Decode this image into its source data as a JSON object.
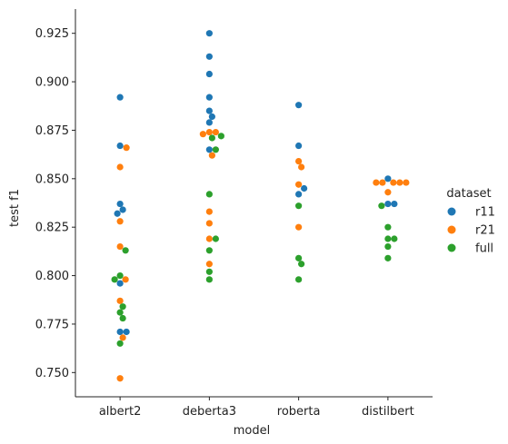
{
  "chart_data": {
    "type": "scatter",
    "xlabel": "model",
    "ylabel": "test f1",
    "categories": [
      "albert2",
      "deberta3",
      "roberta",
      "distilbert"
    ],
    "ylim": [
      0.7375,
      0.9375
    ],
    "yticks": [
      0.75,
      0.775,
      0.8,
      0.825,
      0.85,
      0.875,
      0.9,
      0.925
    ],
    "ytick_labels": [
      "0.750",
      "0.775",
      "0.800",
      "0.825",
      "0.850",
      "0.875",
      "0.900",
      "0.925"
    ],
    "grid": false,
    "legend": {
      "title": "dataset",
      "placement": "right"
    },
    "series": [
      {
        "name": "r11",
        "color": "#1f77b4",
        "points": [
          {
            "category": "albert2",
            "y": 0.892
          },
          {
            "category": "albert2",
            "y": 0.867
          },
          {
            "category": "albert2",
            "y": 0.837
          },
          {
            "category": "albert2",
            "y": 0.834
          },
          {
            "category": "albert2",
            "y": 0.832
          },
          {
            "category": "albert2",
            "y": 0.796
          },
          {
            "category": "albert2",
            "y": 0.771
          },
          {
            "category": "albert2",
            "y": 0.771
          },
          {
            "category": "deberta3",
            "y": 0.925
          },
          {
            "category": "deberta3",
            "y": 0.913
          },
          {
            "category": "deberta3",
            "y": 0.904
          },
          {
            "category": "deberta3",
            "y": 0.892
          },
          {
            "category": "deberta3",
            "y": 0.885
          },
          {
            "category": "deberta3",
            "y": 0.882
          },
          {
            "category": "deberta3",
            "y": 0.879
          },
          {
            "category": "deberta3",
            "y": 0.865
          },
          {
            "category": "roberta",
            "y": 0.888
          },
          {
            "category": "roberta",
            "y": 0.867
          },
          {
            "category": "roberta",
            "y": 0.845
          },
          {
            "category": "roberta",
            "y": 0.842
          },
          {
            "category": "distilbert",
            "y": 0.85
          },
          {
            "category": "distilbert",
            "y": 0.837
          },
          {
            "category": "distilbert",
            "y": 0.837
          }
        ]
      },
      {
        "name": "r21",
        "color": "#ff7f0e",
        "points": [
          {
            "category": "albert2",
            "y": 0.866
          },
          {
            "category": "albert2",
            "y": 0.856
          },
          {
            "category": "albert2",
            "y": 0.828
          },
          {
            "category": "albert2",
            "y": 0.815
          },
          {
            "category": "albert2",
            "y": 0.798
          },
          {
            "category": "albert2",
            "y": 0.787
          },
          {
            "category": "albert2",
            "y": 0.768
          },
          {
            "category": "albert2",
            "y": 0.747
          },
          {
            "category": "deberta3",
            "y": 0.874
          },
          {
            "category": "deberta3",
            "y": 0.874
          },
          {
            "category": "deberta3",
            "y": 0.873
          },
          {
            "category": "deberta3",
            "y": 0.862
          },
          {
            "category": "deberta3",
            "y": 0.833
          },
          {
            "category": "deberta3",
            "y": 0.827
          },
          {
            "category": "deberta3",
            "y": 0.819
          },
          {
            "category": "deberta3",
            "y": 0.806
          },
          {
            "category": "roberta",
            "y": 0.859
          },
          {
            "category": "roberta",
            "y": 0.856
          },
          {
            "category": "roberta",
            "y": 0.847
          },
          {
            "category": "roberta",
            "y": 0.825
          },
          {
            "category": "distilbert",
            "y": 0.848
          },
          {
            "category": "distilbert",
            "y": 0.848
          },
          {
            "category": "distilbert",
            "y": 0.848
          },
          {
            "category": "distilbert",
            "y": 0.848
          },
          {
            "category": "distilbert",
            "y": 0.848
          },
          {
            "category": "distilbert",
            "y": 0.843
          }
        ]
      },
      {
        "name": "full",
        "color": "#2ca02c",
        "points": [
          {
            "category": "albert2",
            "y": 0.813
          },
          {
            "category": "albert2",
            "y": 0.8
          },
          {
            "category": "albert2",
            "y": 0.798
          },
          {
            "category": "albert2",
            "y": 0.784
          },
          {
            "category": "albert2",
            "y": 0.781
          },
          {
            "category": "albert2",
            "y": 0.778
          },
          {
            "category": "albert2",
            "y": 0.765
          },
          {
            "category": "deberta3",
            "y": 0.872
          },
          {
            "category": "deberta3",
            "y": 0.871
          },
          {
            "category": "deberta3",
            "y": 0.865
          },
          {
            "category": "deberta3",
            "y": 0.842
          },
          {
            "category": "deberta3",
            "y": 0.819
          },
          {
            "category": "deberta3",
            "y": 0.813
          },
          {
            "category": "deberta3",
            "y": 0.802
          },
          {
            "category": "deberta3",
            "y": 0.798
          },
          {
            "category": "roberta",
            "y": 0.836
          },
          {
            "category": "roberta",
            "y": 0.809
          },
          {
            "category": "roberta",
            "y": 0.806
          },
          {
            "category": "roberta",
            "y": 0.798
          },
          {
            "category": "distilbert",
            "y": 0.836
          },
          {
            "category": "distilbert",
            "y": 0.825
          },
          {
            "category": "distilbert",
            "y": 0.819
          },
          {
            "category": "distilbert",
            "y": 0.819
          },
          {
            "category": "distilbert",
            "y": 0.815
          },
          {
            "category": "distilbert",
            "y": 0.809
          }
        ]
      }
    ]
  }
}
